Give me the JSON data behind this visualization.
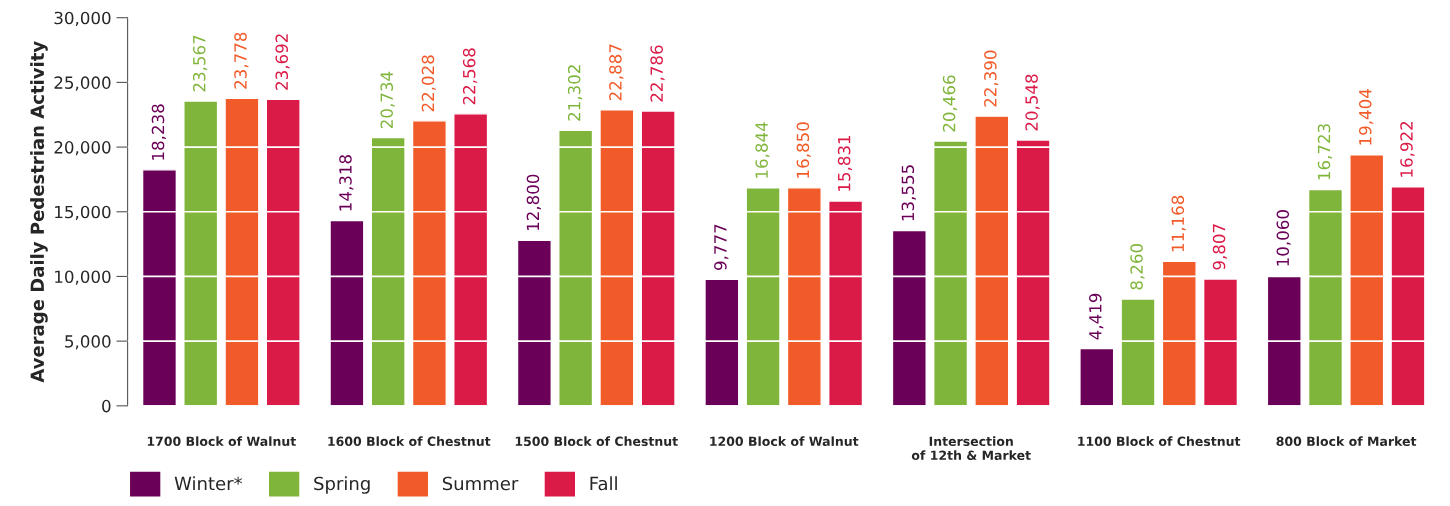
{
  "chart_data": {
    "type": "bar",
    "ylabel": "Average Daily Pedestrian Activity",
    "categories": [
      "1700 Block of Walnut",
      "1600 Block of Chestnut",
      "1500 Block of Chestnut",
      "1200 Block of Walnut",
      "Intersection\nof 12th & Market",
      "1100 Block of Chestnut",
      "800 Block of Market"
    ],
    "series": [
      {
        "name": "Winter*",
        "color": "#6b0058",
        "values": [
          18238,
          14318,
          12800,
          9777,
          13555,
          4419,
          10060
        ],
        "value_labels": [
          "18,238",
          "14,318",
          "12,800",
          "9,777",
          "13,555",
          "4,419",
          "10,060"
        ]
      },
      {
        "name": "Spring",
        "color": "#80b53b",
        "values": [
          23567,
          20734,
          21302,
          16844,
          20466,
          8260,
          16723
        ],
        "value_labels": [
          "23,567",
          "20,734",
          "21,302",
          "16,844",
          "20,466",
          "8,260",
          "16,723"
        ]
      },
      {
        "name": "Summer",
        "color": "#f15a29",
        "values": [
          23778,
          22028,
          22887,
          16850,
          22390,
          11168,
          19404
        ],
        "value_labels": [
          "23,778",
          "22,028",
          "22,887",
          "16,850",
          "22,390",
          "11,168",
          "19,404"
        ]
      },
      {
        "name": "Fall",
        "color": "#da1a47",
        "values": [
          23692,
          22568,
          22786,
          15831,
          20548,
          9807,
          16922
        ],
        "value_labels": [
          "23,692",
          "22,568",
          "22,786",
          "15,831",
          "20,548",
          "9,807",
          "16,922"
        ]
      }
    ],
    "ylim": [
      0,
      30000
    ],
    "yticks": [
      {
        "value": 0,
        "label": "0"
      },
      {
        "value": 5000,
        "label": "5,000"
      },
      {
        "value": 10000,
        "label": "10,000"
      },
      {
        "value": 15000,
        "label": "15,000"
      },
      {
        "value": 20000,
        "label": "20,000"
      },
      {
        "value": 25000,
        "label": "25,000"
      },
      {
        "value": 30000,
        "label": "30,000"
      }
    ],
    "grid": "y",
    "legend": "bottom left"
  }
}
